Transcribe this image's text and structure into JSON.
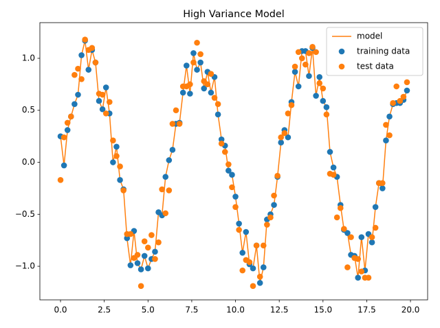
{
  "chart_data": {
    "type": "scatter",
    "title": "High Variance Model",
    "x": [
      0,
      0.2,
      0.4,
      0.6,
      0.8,
      1.0,
      1.2,
      1.4,
      1.6,
      1.8,
      2.0,
      2.2,
      2.4,
      2.6,
      2.8,
      3.0,
      3.2,
      3.4,
      3.6,
      3.8,
      4.0,
      4.2,
      4.4,
      4.6,
      4.8,
      5.0,
      5.2,
      5.4,
      5.6,
      5.8,
      6.0,
      6.2,
      6.4,
      6.6,
      6.8,
      7.0,
      7.2,
      7.4,
      7.6,
      7.8,
      8.0,
      8.2,
      8.4,
      8.6,
      8.8,
      9.0,
      9.2,
      9.4,
      9.6,
      9.8,
      10.0,
      10.2,
      10.4,
      10.6,
      10.8,
      11.0,
      11.2,
      11.4,
      11.6,
      11.8,
      12.0,
      12.2,
      12.4,
      12.6,
      12.8,
      13.0,
      13.2,
      13.4,
      13.6,
      13.8,
      14.0,
      14.2,
      14.4,
      14.6,
      14.8,
      15.0,
      15.2,
      15.4,
      15.6,
      15.8,
      16.0,
      16.2,
      16.4,
      16.6,
      16.8,
      17.0,
      17.2,
      17.4,
      17.6,
      17.8,
      18.0,
      18.2,
      18.4,
      18.6,
      18.8,
      19.0,
      19.2,
      19.4,
      19.6,
      19.8
    ],
    "series": [
      {
        "name": "model",
        "type": "line",
        "color": "#ff7f0e",
        "values": [
          0.25,
          -0.03,
          0.31,
          0.44,
          0.56,
          0.65,
          1.03,
          1.17,
          0.89,
          1.08,
          0.96,
          0.59,
          0.51,
          0.72,
          0.47,
          0.0,
          0.15,
          -0.17,
          -0.26,
          -0.73,
          -0.99,
          -0.66,
          -0.97,
          -1.03,
          -0.9,
          -1.02,
          -0.93,
          -0.86,
          -0.48,
          -0.51,
          -0.14,
          0.02,
          0.12,
          0.37,
          0.38,
          0.67,
          0.93,
          0.66,
          1.05,
          0.89,
          0.96,
          0.71,
          0.87,
          0.67,
          0.82,
          0.46,
          0.22,
          0.16,
          -0.08,
          -0.12,
          -0.33,
          -0.59,
          -0.87,
          -0.67,
          -0.98,
          -1.02,
          -0.8,
          -1.16,
          -1.01,
          -0.55,
          -0.5,
          -0.41,
          -0.14,
          0.19,
          0.31,
          0.24,
          0.58,
          0.87,
          0.73,
          1.07,
          1.07,
          0.83,
          1.1,
          0.64,
          0.82,
          0.59,
          0.53,
          0.1,
          -0.05,
          -0.14,
          -0.41,
          -0.65,
          -0.68,
          -0.89,
          -0.9,
          -1.11,
          -0.72,
          -1.04,
          -0.69,
          -0.77,
          -0.43,
          -0.2,
          -0.25,
          0.21,
          0.44,
          0.56,
          0.57,
          0.57,
          0.6,
          0.69
        ]
      },
      {
        "name": "training data",
        "type": "scatter",
        "color": "#1f77b4",
        "values": [
          0.25,
          -0.03,
          0.31,
          0.44,
          0.56,
          0.65,
          1.03,
          1.17,
          0.89,
          1.08,
          0.96,
          0.59,
          0.51,
          0.72,
          0.47,
          0.0,
          0.15,
          -0.17,
          -0.26,
          -0.73,
          -0.99,
          -0.66,
          -0.97,
          -1.03,
          -0.9,
          -1.02,
          -0.93,
          -0.86,
          -0.48,
          -0.51,
          -0.14,
          0.02,
          0.12,
          0.37,
          0.38,
          0.67,
          0.93,
          0.66,
          1.05,
          0.89,
          0.96,
          0.71,
          0.87,
          0.67,
          0.82,
          0.46,
          0.22,
          0.16,
          -0.08,
          -0.12,
          -0.33,
          -0.59,
          -0.87,
          -0.67,
          -0.98,
          -1.02,
          -0.8,
          -1.16,
          -1.01,
          -0.55,
          -0.5,
          -0.41,
          -0.14,
          0.19,
          0.31,
          0.24,
          0.58,
          0.87,
          0.73,
          1.07,
          1.07,
          0.83,
          1.1,
          0.64,
          0.82,
          0.59,
          0.53,
          0.1,
          -0.05,
          -0.14,
          -0.41,
          -0.65,
          -0.68,
          -0.89,
          -0.9,
          -1.11,
          -0.72,
          -1.04,
          -0.69,
          -0.77,
          -0.43,
          -0.2,
          -0.25,
          0.21,
          0.44,
          0.56,
          0.57,
          0.57,
          0.6,
          0.69
        ]
      },
      {
        "name": "test data",
        "type": "scatter",
        "color": "#ff7f0e",
        "values": [
          -0.17,
          0.24,
          0.38,
          0.44,
          0.84,
          0.9,
          0.8,
          1.18,
          1.08,
          1.1,
          0.96,
          0.66,
          0.65,
          0.47,
          0.58,
          0.21,
          0.06,
          -0.04,
          -0.27,
          -0.69,
          -0.69,
          -0.92,
          -0.89,
          -1.19,
          -0.76,
          -0.82,
          -0.7,
          -0.93,
          -0.77,
          -0.26,
          -0.49,
          -0.27,
          0.37,
          0.5,
          0.37,
          0.73,
          0.73,
          0.75,
          0.96,
          1.15,
          1.04,
          0.78,
          0.75,
          0.85,
          0.62,
          0.56,
          0.18,
          0.1,
          -0.02,
          -0.24,
          -0.43,
          -0.65,
          -1.04,
          -0.94,
          -0.96,
          -1.19,
          -0.8,
          -1.1,
          -0.8,
          -0.6,
          -0.53,
          -0.32,
          -0.13,
          0.24,
          0.28,
          0.47,
          0.55,
          0.92,
          1.06,
          1.0,
          0.94,
          1.05,
          1.11,
          1.06,
          0.76,
          0.71,
          0.46,
          -0.11,
          -0.12,
          -0.53,
          -0.44,
          -0.64,
          -1.01,
          -0.72,
          -0.92,
          -0.93,
          -1.05,
          -1.11,
          -1.11,
          -0.72,
          -0.63,
          -0.2,
          -0.2,
          0.36,
          0.26,
          0.57,
          0.73,
          0.59,
          0.63,
          0.77
        ]
      }
    ],
    "xlim": [
      -1.18,
      20.98
    ],
    "ylim": [
      -1.323,
      1.343
    ],
    "xticks": [
      {
        "value": 0,
        "label": "0.0"
      },
      2.5,
      {
        "value": 5,
        "label": "5.0"
      },
      7.5,
      {
        "value": 10,
        "label": "10.0"
      },
      12.5,
      {
        "value": 15,
        "label": "15.0"
      },
      17.5,
      {
        "value": 20,
        "label": "20.0"
      }
    ],
    "yticks": [
      {
        "value": -1,
        "label": "−1.0"
      },
      {
        "value": -0.5,
        "label": "−0.5"
      },
      {
        "value": 0,
        "label": "0.0"
      },
      0.5,
      {
        "value": 1,
        "label": "1.0"
      }
    ],
    "legend": "upper right"
  }
}
